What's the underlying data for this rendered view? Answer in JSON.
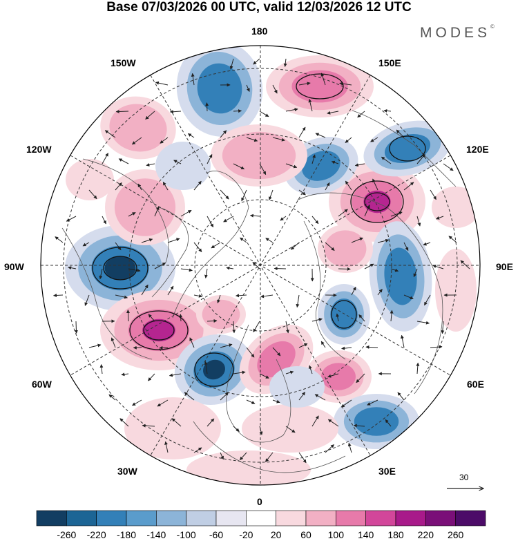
{
  "title": "Base 07/03/2026 00 UTC, valid 12/03/2026 12 UTC",
  "brand": "MODES",
  "brand_mark": "©",
  "longitude_labels": {
    "top": "180",
    "bottom": "0",
    "left": "90W",
    "right": "90E",
    "upper_left_1": "150W",
    "upper_left_2": "120W",
    "upper_right_1": "150E",
    "upper_right_2": "120E",
    "lower_left_1": "60W",
    "lower_left_2": "30W",
    "lower_right_1": "60E",
    "lower_right_2": "30E"
  },
  "reference_vector": {
    "value": "30"
  },
  "colorbar": {
    "labels": [
      "-260",
      "-220",
      "-180",
      "-140",
      "-100",
      "-60",
      "-20",
      "20",
      "60",
      "100",
      "140",
      "180",
      "220",
      "260"
    ],
    "colors": [
      "#123e62",
      "#1c6595",
      "#3380b8",
      "#5a9ccc",
      "#8cb4d8",
      "#c0cee4",
      "#e7e6f1",
      "#ffffff",
      "#f8d9df",
      "#f2b0c4",
      "#e77aaa",
      "#d2469a",
      "#a81a8a",
      "#7a0f78",
      "#4c0b68"
    ]
  },
  "anomaly_palette": {
    "neg_strong": "#123e62",
    "neg_mid": "#3380b8",
    "neg_light": "#8cb4d8",
    "neg_faint": "#d5dced",
    "pos_faint": "#f8d9df",
    "pos_light": "#f2b0c4",
    "pos_mid": "#e77aaa",
    "pos_strong": "#b52590"
  }
}
